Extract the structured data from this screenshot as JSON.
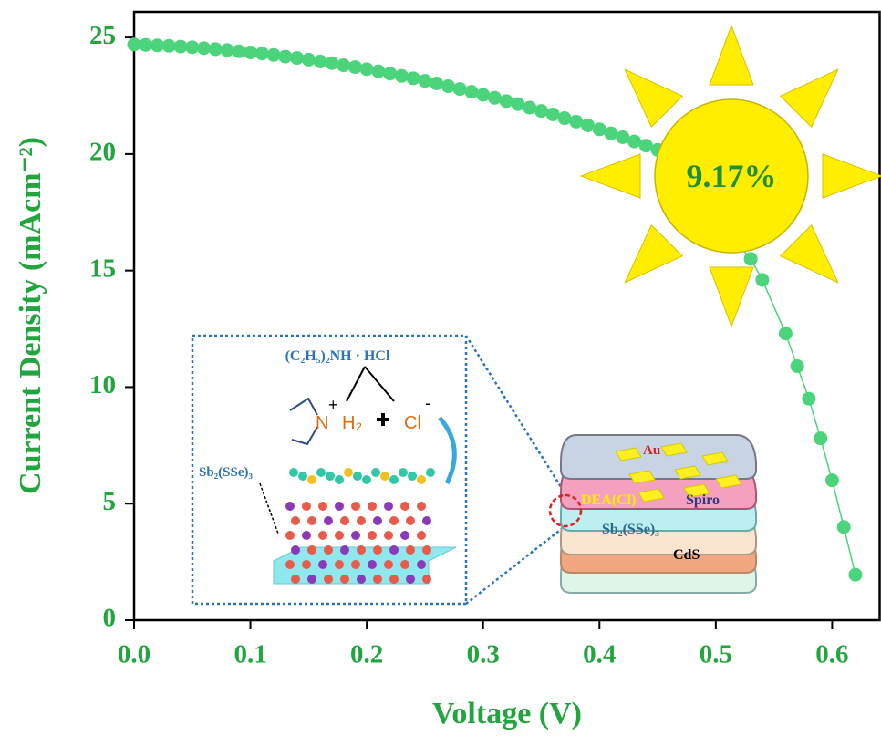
{
  "chart_data": {
    "type": "scatter",
    "xlabel": "Voltage (V)",
    "ylabel": "Current Density (mAcm⁻²)",
    "xlim": [
      0,
      0.642
    ],
    "ylim": [
      0,
      26.1
    ],
    "xticks": [
      {
        "value": 0,
        "label": "0.0"
      },
      0.1,
      0.2,
      0.3,
      0.4,
      0.5,
      0.6
    ],
    "yticks": [
      0,
      5,
      10,
      15,
      20,
      25
    ],
    "series": [
      {
        "color": "#4cd47c",
        "x": [
          0,
          0.01,
          0.02,
          0.03,
          0.04,
          0.05,
          0.06,
          0.07,
          0.08,
          0.09,
          0.1,
          0.11,
          0.12,
          0.13,
          0.14,
          0.15,
          0.16,
          0.17,
          0.18,
          0.19,
          0.2,
          0.21,
          0.22,
          0.23,
          0.24,
          0.25,
          0.26,
          0.27,
          0.28,
          0.29,
          0.3,
          0.31,
          0.32,
          0.33,
          0.34,
          0.35,
          0.36,
          0.37,
          0.38,
          0.39,
          0.4,
          0.41,
          0.42,
          0.43,
          0.44,
          0.45,
          0.53,
          0.54,
          0.56,
          0.57,
          0.58,
          0.59,
          0.6,
          0.61,
          0.62
        ],
        "values": [
          24.7,
          24.68,
          24.66,
          24.64,
          24.61,
          24.58,
          24.54,
          24.5,
          24.46,
          24.41,
          24.36,
          24.31,
          24.25,
          24.18,
          24.12,
          24.05,
          23.97,
          23.9,
          23.81,
          23.73,
          23.64,
          23.55,
          23.45,
          23.35,
          23.25,
          23.14,
          23.03,
          22.91,
          22.79,
          22.67,
          22.54,
          22.41,
          22.27,
          22.14,
          21.99,
          21.85,
          21.7,
          21.54,
          21.39,
          21.23,
          21.06,
          20.89,
          20.72,
          20.54,
          20.36,
          20.18,
          15.5,
          14.6,
          12.3,
          10.9,
          9.5,
          7.8,
          6.0,
          4.0,
          1.95
        ]
      }
    ],
    "annotations": {
      "efficiency": "9.17%",
      "reagent": "(C₂H₅)₂NH · HCl",
      "absorber_inset": "Sb₂(SSe)₃",
      "n": "N",
      "plus": "+",
      "h2": "H₂",
      "cl": "Cl",
      "minus": "-",
      "au": "Au",
      "spiro": "Spiro",
      "dea": "DEA(Cl)",
      "absorber": "Sb₂(SSe)₃",
      "cds": "CdS"
    }
  }
}
